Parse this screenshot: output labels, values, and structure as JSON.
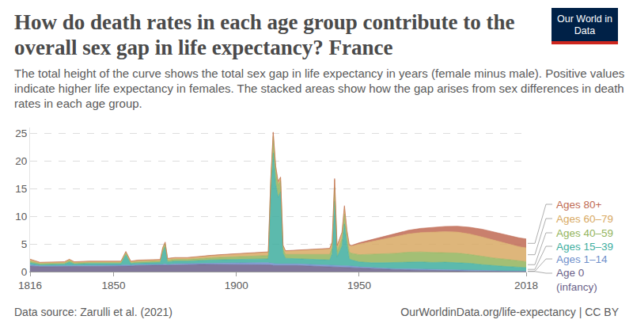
{
  "chart_data": {
    "type": "area",
    "stacked": true,
    "title": "How do death rates in each age group contribute to the overall sex gap in life expectancy? France",
    "subtitle": "The total height of the curve shows the total sex gap in life expectancy in years (female minus male). Positive values indicate higher life expectancy in females. The stacked areas show how the gap arises from sex differences in death rates in each age group.",
    "logo": "Our World in Data",
    "source": "Data source: Zarulli et al. (2021)",
    "credit": "OurWorldinData.org/life-expectancy | CC BY",
    "grid": true,
    "xlim": [
      1816,
      2018
    ],
    "xticks": [
      1816,
      1850,
      1900,
      1950,
      2018
    ],
    "ylim": [
      0,
      26
    ],
    "yticks": [
      0,
      5,
      10,
      15,
      20,
      25
    ],
    "x": [
      1816,
      1820,
      1825,
      1830,
      1832,
      1834,
      1840,
      1845,
      1850,
      1853,
      1855,
      1857,
      1860,
      1865,
      1869,
      1870,
      1871,
      1872,
      1875,
      1880,
      1885,
      1890,
      1895,
      1900,
      1905,
      1910,
      1913,
      1914,
      1915,
      1916,
      1917,
      1918,
      1919,
      1920,
      1925,
      1930,
      1935,
      1938,
      1939,
      1940,
      1941,
      1942,
      1943,
      1944,
      1945,
      1946,
      1947,
      1950,
      1955,
      1960,
      1965,
      1970,
      1975,
      1980,
      1985,
      1990,
      1995,
      2000,
      2005,
      2010,
      2015,
      2018
    ],
    "series": [
      {
        "name": "Age 0 (infancy)",
        "color": "#6a5f89",
        "values": [
          1.0,
          0.9,
          0.9,
          0.9,
          0.9,
          0.9,
          1.0,
          1.0,
          1.0,
          1.0,
          1.0,
          1.0,
          1.1,
          1.1,
          1.1,
          1.1,
          1.1,
          1.1,
          1.2,
          1.2,
          1.3,
          1.3,
          1.3,
          1.3,
          1.3,
          1.3,
          1.3,
          1.2,
          1.1,
          1.1,
          1.1,
          1.1,
          1.2,
          1.2,
          1.1,
          1.0,
          0.9,
          0.9,
          0.9,
          0.9,
          0.8,
          0.8,
          0.8,
          0.8,
          0.8,
          0.7,
          0.7,
          0.6,
          0.5,
          0.4,
          0.3,
          0.3,
          0.25,
          0.2,
          0.15,
          0.12,
          0.1,
          0.08,
          0.07,
          0.06,
          0.05,
          0.05
        ]
      },
      {
        "name": "Ages 1–14",
        "color": "#6f8fcb",
        "values": [
          0.2,
          0.15,
          0.15,
          0.15,
          0.2,
          0.15,
          0.15,
          0.15,
          0.15,
          0.15,
          0.2,
          0.15,
          0.15,
          0.15,
          0.15,
          0.2,
          0.3,
          0.15,
          0.2,
          0.2,
          0.2,
          0.2,
          0.25,
          0.3,
          0.3,
          0.3,
          0.3,
          0.3,
          0.3,
          0.3,
          0.3,
          0.3,
          0.3,
          0.3,
          0.3,
          0.3,
          0.3,
          0.3,
          0.3,
          0.3,
          0.3,
          0.3,
          0.3,
          0.3,
          0.3,
          0.3,
          0.3,
          0.25,
          0.2,
          0.2,
          0.2,
          0.2,
          0.2,
          0.15,
          0.15,
          0.12,
          0.1,
          0.08,
          0.07,
          0.06,
          0.05,
          0.05
        ]
      },
      {
        "name": "Ages 15–39",
        "color": "#40ae9f",
        "values": [
          0.4,
          0.2,
          0.25,
          0.3,
          0.6,
          0.3,
          0.3,
          0.3,
          0.25,
          0.3,
          1.8,
          0.3,
          0.3,
          0.3,
          0.4,
          2.2,
          3.0,
          0.5,
          0.5,
          0.5,
          0.55,
          0.6,
          0.6,
          0.6,
          0.6,
          0.6,
          0.7,
          12,
          20,
          14.5,
          12,
          13,
          1.8,
          0.9,
          0.9,
          0.9,
          0.9,
          0.9,
          2.0,
          11.5,
          1.5,
          2.5,
          3.5,
          7.5,
          3.8,
          1.3,
          1.1,
          0.9,
          0.9,
          1.0,
          1.1,
          1.2,
          1.3,
          1.3,
          1.4,
          1.4,
          1.3,
          1.1,
          0.9,
          0.8,
          0.7,
          0.6
        ]
      },
      {
        "name": "Ages 40–59",
        "color": "#93b45d",
        "values": [
          0.3,
          0.2,
          0.2,
          0.2,
          0.3,
          0.2,
          0.2,
          0.2,
          0.2,
          0.2,
          0.4,
          0.2,
          0.25,
          0.25,
          0.25,
          0.5,
          0.6,
          0.3,
          0.3,
          0.3,
          0.35,
          0.4,
          0.45,
          0.5,
          0.55,
          0.6,
          0.6,
          2.5,
          3.0,
          2.5,
          2.2,
          2.0,
          0.8,
          0.7,
          0.8,
          0.9,
          1.0,
          1.0,
          1.1,
          2.5,
          1.0,
          1.2,
          1.3,
          1.8,
          1.3,
          1.2,
          1.2,
          1.3,
          1.5,
          1.6,
          1.7,
          1.8,
          1.8,
          1.8,
          1.7,
          1.7,
          1.6,
          1.5,
          1.4,
          1.3,
          1.1,
          1.1
        ]
      },
      {
        "name": "Ages 60–79",
        "color": "#d8a964",
        "values": [
          0.3,
          0.2,
          0.2,
          0.2,
          0.2,
          0.2,
          0.2,
          0.2,
          0.2,
          0.2,
          0.2,
          0.2,
          0.25,
          0.25,
          0.25,
          0.3,
          0.3,
          0.3,
          0.3,
          0.3,
          0.35,
          0.4,
          0.45,
          0.5,
          0.55,
          0.6,
          0.6,
          0.6,
          0.7,
          0.6,
          0.6,
          0.6,
          0.6,
          0.6,
          0.7,
          0.8,
          0.9,
          1.0,
          1.0,
          1.4,
          1.0,
          1.1,
          1.1,
          1.3,
          1.2,
          1.2,
          1.3,
          1.9,
          2.3,
          2.7,
          3.0,
          3.3,
          3.5,
          3.7,
          3.8,
          3.8,
          3.7,
          3.5,
          3.2,
          2.9,
          2.6,
          2.5
        ]
      },
      {
        "name": "Ages 80+",
        "color": "#bf6a53",
        "values": [
          0.05,
          0.03,
          0.03,
          0.03,
          0.03,
          0.03,
          0.03,
          0.03,
          0.03,
          0.03,
          0.03,
          0.03,
          0.03,
          0.03,
          0.03,
          0.03,
          0.03,
          0.03,
          0.04,
          0.04,
          0.04,
          0.05,
          0.05,
          0.05,
          0.06,
          0.07,
          0.07,
          0.07,
          0.07,
          0.07,
          0.07,
          0.07,
          0.07,
          0.07,
          0.08,
          0.1,
          0.1,
          0.1,
          0.1,
          0.2,
          0.1,
          0.1,
          0.1,
          0.2,
          0.1,
          0.1,
          0.15,
          0.25,
          0.35,
          0.45,
          0.55,
          0.65,
          0.75,
          0.85,
          0.95,
          1.05,
          1.2,
          1.4,
          1.5,
          1.6,
          1.6,
          1.6
        ]
      }
    ]
  }
}
